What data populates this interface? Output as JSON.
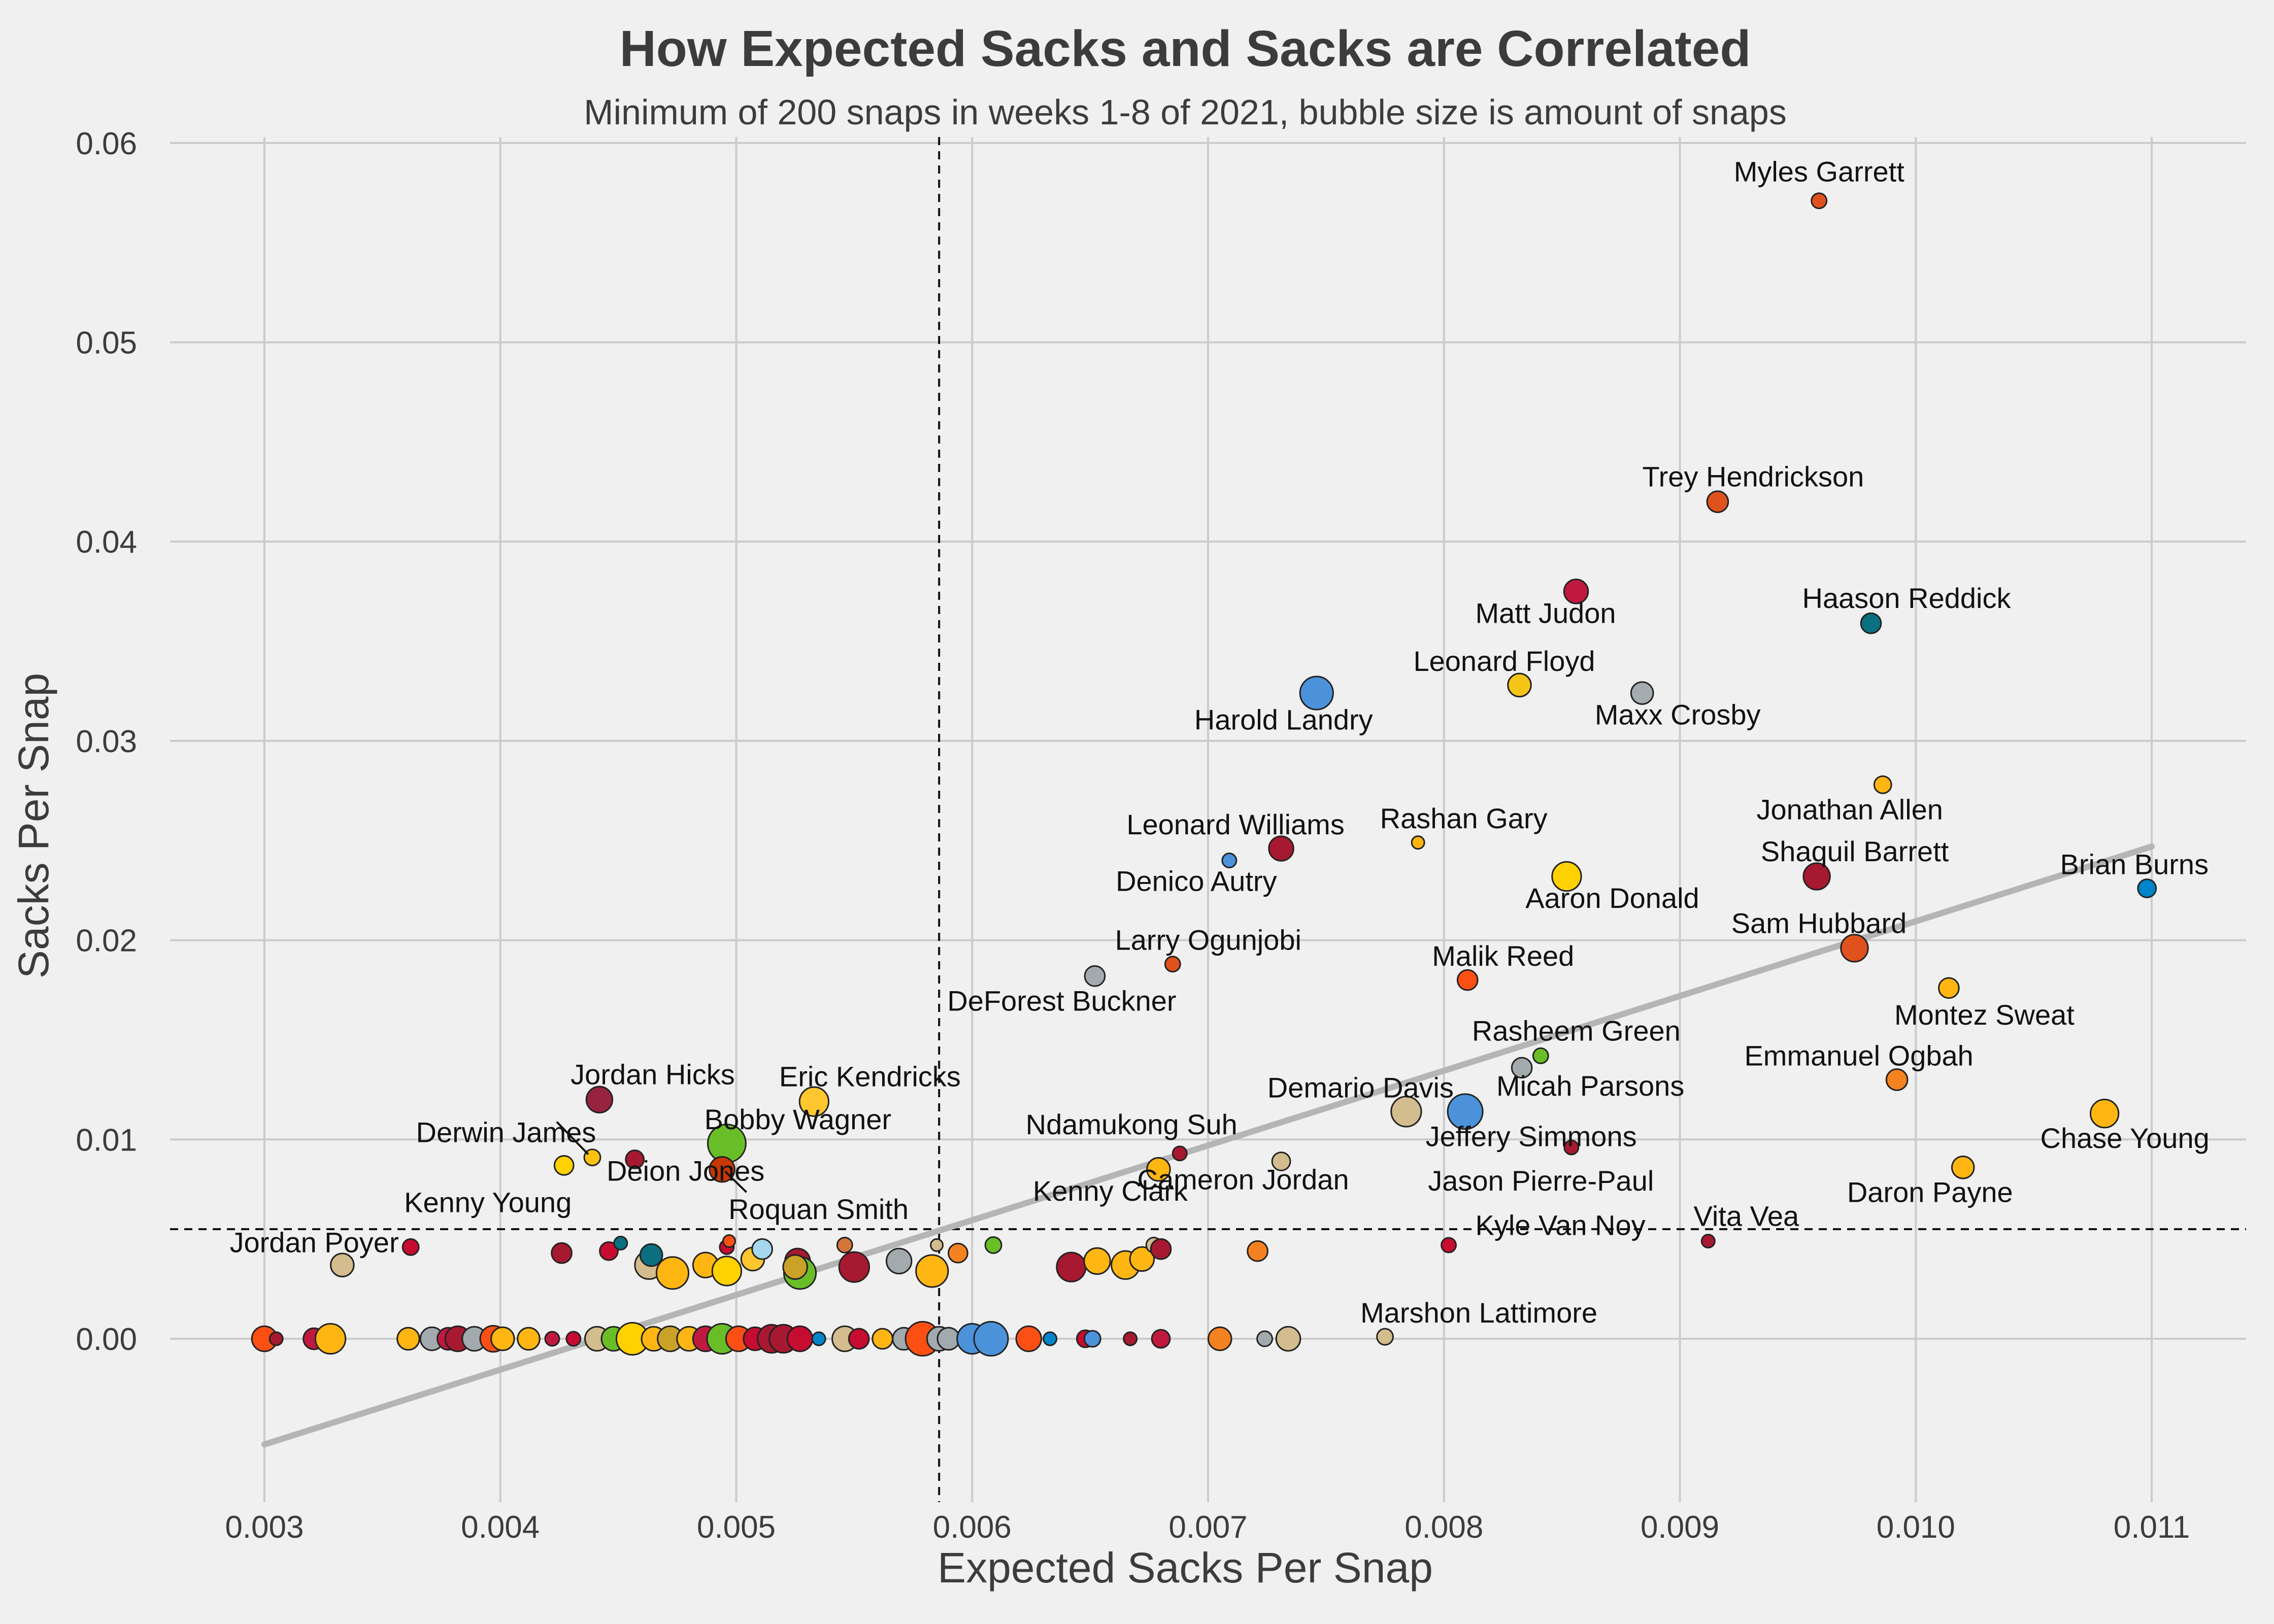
{
  "chart_data": {
    "type": "scatter",
    "title": "How Expected Sacks and Sacks are Correlated",
    "subtitle": "Minimum of 200 snaps in weeks 1-8 of 2021, bubble size is amount of snaps",
    "xlabel": "Expected Sacks Per Snap",
    "ylabel": "Sacks Per Snap",
    "xlim": [
      0.0026,
      0.0114
    ],
    "ylim": [
      -0.0082,
      0.0603
    ],
    "xticks": [
      "0.003",
      "0.004",
      "0.005",
      "0.006",
      "0.007",
      "0.008",
      "0.009",
      "0.010",
      "0.011"
    ],
    "yticks": [
      "0.00",
      "0.01",
      "0.02",
      "0.03",
      "0.04",
      "0.05",
      "0.06"
    ],
    "grid": true,
    "reference_lines": {
      "x_mean": 0.00586,
      "y_mean": 0.0055
    },
    "trend_line": {
      "x": [
        0.003,
        0.011
      ],
      "y": [
        -0.0053,
        0.0247
      ]
    },
    "labeled_points": [
      {
        "name": "Myles Garrett",
        "x": 0.00959,
        "y": 0.0571,
        "snaps": 230,
        "color": "#e0521d"
      },
      {
        "name": "Trey Hendrickson",
        "x": 0.00916,
        "y": 0.042,
        "snaps": 290,
        "color": "#e0521d"
      },
      {
        "name": "Haason Reddick",
        "x": 0.00981,
        "y": 0.0359,
        "snaps": 280,
        "color": "#0a7080"
      },
      {
        "name": "Matt Judon",
        "x": 0.00856,
        "y": 0.0375,
        "snaps": 320,
        "color": "#c0193f"
      },
      {
        "name": "Leonard Floyd",
        "x": 0.00832,
        "y": 0.0328,
        "snaps": 310,
        "color": "#f5c518"
      },
      {
        "name": "Maxx Crosby",
        "x": 0.00884,
        "y": 0.0324,
        "snaps": 300,
        "color": "#a5acaf"
      },
      {
        "name": "Harold Landry",
        "x": 0.00746,
        "y": 0.0324,
        "snaps": 410,
        "color": "#4b92db"
      },
      {
        "name": "Jonathan Allen",
        "x": 0.00986,
        "y": 0.0278,
        "snaps": 250,
        "color": "#ffb612"
      },
      {
        "name": "Shaquil Barrett",
        "x": 0.00958,
        "y": 0.0232,
        "snaps": 345,
        "color": "#a71930"
      },
      {
        "name": "Brian Burns",
        "x": 0.01098,
        "y": 0.0226,
        "snaps": 260,
        "color": "#0085ca"
      },
      {
        "name": "Leonard Williams",
        "x": 0.00731,
        "y": 0.0246,
        "snaps": 325,
        "color": "#a71930"
      },
      {
        "name": "Denico Autry",
        "x": 0.00709,
        "y": 0.024,
        "snaps": 220,
        "color": "#4b92db"
      },
      {
        "name": "Rashan Gary",
        "x": 0.00789,
        "y": 0.0249,
        "snaps": 205,
        "color": "#ffb612"
      },
      {
        "name": "Aaron Donald",
        "x": 0.00852,
        "y": 0.0232,
        "snaps": 370,
        "color": "#ffd100"
      },
      {
        "name": "Sam Hubbard",
        "x": 0.00974,
        "y": 0.0196,
        "snaps": 350,
        "color": "#e0521d"
      },
      {
        "name": "Montez Sweat",
        "x": 0.01014,
        "y": 0.0176,
        "snaps": 280,
        "color": "#ffb612"
      },
      {
        "name": "Larry Ogunjobi",
        "x": 0.00685,
        "y": 0.0188,
        "snaps": 230,
        "color": "#e0521d"
      },
      {
        "name": "DeForest Buckner",
        "x": 0.00652,
        "y": 0.0182,
        "snaps": 280,
        "color": "#a2aaad"
      },
      {
        "name": "Malik Reed",
        "x": 0.0081,
        "y": 0.018,
        "snaps": 280,
        "color": "#fb4f14"
      },
      {
        "name": "Rasheem Green",
        "x": 0.00841,
        "y": 0.0142,
        "snaps": 230,
        "color": "#69be28"
      },
      {
        "name": "Micah Parsons",
        "x": 0.00833,
        "y": 0.0136,
        "snaps": 280,
        "color": "#a2aaad"
      },
      {
        "name": "Emmanuel Ogbah",
        "x": 0.00992,
        "y": 0.013,
        "snaps": 290,
        "color": "#f58220"
      },
      {
        "name": "Demario Davis",
        "x": 0.00784,
        "y": 0.0114,
        "snaps": 380,
        "color": "#d3bc8d"
      },
      {
        "name": "Jeffery Simmons",
        "x": 0.00809,
        "y": 0.0114,
        "snaps": 430,
        "color": "#4b92db"
      },
      {
        "name": "Chase Young",
        "x": 0.0108,
        "y": 0.0113,
        "snaps": 360,
        "color": "#ffb612"
      },
      {
        "name": "Jason Pierre-Paul",
        "x": 0.00854,
        "y": 0.0096,
        "snaps": 220,
        "color": "#a71930"
      },
      {
        "name": "Daron Payne",
        "x": 0.0102,
        "y": 0.0086,
        "snaps": 300,
        "color": "#ffb612"
      },
      {
        "name": "Cameron Jordan",
        "x": 0.00731,
        "y": 0.0089,
        "snaps": 260,
        "color": "#d3bc8d"
      },
      {
        "name": "Kenny Clark",
        "x": 0.00679,
        "y": 0.0085,
        "snaps": 310,
        "color": "#ffb612"
      },
      {
        "name": "Ndamukong Suh",
        "x": 0.00688,
        "y": 0.0093,
        "snaps": 220,
        "color": "#a71930"
      },
      {
        "name": "Jordan Hicks",
        "x": 0.00442,
        "y": 0.012,
        "snaps": 340,
        "color": "#97233f"
      },
      {
        "name": "Eric Kendricks",
        "x": 0.00533,
        "y": 0.0119,
        "snaps": 370,
        "color": "#ffc62f"
      },
      {
        "name": "Bobby Wagner",
        "x": 0.00496,
        "y": 0.0098,
        "snaps": 460,
        "color": "#69be28"
      },
      {
        "name": "Derwin James",
        "x": 0.00439,
        "y": 0.0091,
        "snaps": 240,
        "color": "#ffc20e"
      },
      {
        "name": "Deion Jones",
        "x": 0.00457,
        "y": 0.009,
        "snaps": 260,
        "color": "#a71930"
      },
      {
        "name": "Roquan Smith",
        "x": 0.00494,
        "y": 0.0085,
        "snaps": 330,
        "color": "#c83803"
      },
      {
        "name": "Kenny Young",
        "x": 0.00427,
        "y": 0.0087,
        "snaps": 270,
        "color": "#ffd100"
      },
      {
        "name": "Jordan Poyer",
        "x": 0.00362,
        "y": 0.0046,
        "snaps": 240,
        "color": "#c60c30"
      },
      {
        "name": "Kyle Van Noy",
        "x": 0.00802,
        "y": 0.0047,
        "snaps": 225,
        "color": "#c60c30"
      },
      {
        "name": "Vita Vea",
        "x": 0.00912,
        "y": 0.0049,
        "snaps": 210,
        "color": "#a71930"
      },
      {
        "name": "Marshon Lattimore",
        "x": 0.00775,
        "y": 0.0001,
        "snaps": 240,
        "color": "#d3bc8d"
      }
    ],
    "other_points": [
      {
        "x": 0.003,
        "y": 0,
        "snaps": 330,
        "color": "#fb4f14"
      },
      {
        "x": 0.00305,
        "y": 0,
        "snaps": 210,
        "color": "#a71930"
      },
      {
        "x": 0.00321,
        "y": 0,
        "snaps": 290,
        "color": "#c0193f"
      },
      {
        "x": 0.00328,
        "y": 0,
        "snaps": 380,
        "color": "#ffb612"
      },
      {
        "x": 0.00361,
        "y": 0,
        "snaps": 300,
        "color": "#ffb612"
      },
      {
        "x": 0.00371,
        "y": 0,
        "snaps": 310,
        "color": "#a2aaad"
      },
      {
        "x": 0.00378,
        "y": 0,
        "snaps": 300,
        "color": "#c0193f"
      },
      {
        "x": 0.00382,
        "y": 0,
        "snaps": 330,
        "color": "#a71930"
      },
      {
        "x": 0.00389,
        "y": 0,
        "snaps": 320,
        "color": "#a2aaad"
      },
      {
        "x": 0.00397,
        "y": 0,
        "snaps": 340,
        "color": "#fb4f14"
      },
      {
        "x": 0.00401,
        "y": 0,
        "snaps": 310,
        "color": "#ffb612"
      },
      {
        "x": 0.00412,
        "y": 0,
        "snaps": 300,
        "color": "#ffb612"
      },
      {
        "x": 0.00422,
        "y": 0,
        "snaps": 220,
        "color": "#c0193f"
      },
      {
        "x": 0.00431,
        "y": 0,
        "snaps": 220,
        "color": "#c60c30"
      },
      {
        "x": 0.00441,
        "y": 0,
        "snaps": 320,
        "color": "#d3bc8d"
      },
      {
        "x": 0.00448,
        "y": 0,
        "snaps": 320,
        "color": "#69be28"
      },
      {
        "x": 0.00456,
        "y": 0,
        "snaps": 400,
        "color": "#ffd100"
      },
      {
        "x": 0.00465,
        "y": 0,
        "snaps": 320,
        "color": "#ffb612"
      },
      {
        "x": 0.00472,
        "y": 0,
        "snaps": 330,
        "color": "#c9a227"
      },
      {
        "x": 0.0048,
        "y": 0,
        "snaps": 320,
        "color": "#ffb612"
      },
      {
        "x": 0.00487,
        "y": 0,
        "snaps": 330,
        "color": "#c0193f"
      },
      {
        "x": 0.00494,
        "y": 0,
        "snaps": 380,
        "color": "#69be28"
      },
      {
        "x": 0.00501,
        "y": 0,
        "snaps": 330,
        "color": "#fb4f14"
      },
      {
        "x": 0.00508,
        "y": 0,
        "snaps": 310,
        "color": "#c60c30"
      },
      {
        "x": 0.00515,
        "y": 0,
        "snaps": 360,
        "color": "#a71930"
      },
      {
        "x": 0.0052,
        "y": 0,
        "snaps": 360,
        "color": "#a71930"
      },
      {
        "x": 0.00527,
        "y": 0,
        "snaps": 330,
        "color": "#c60c30"
      },
      {
        "x": 0.00535,
        "y": 0,
        "snaps": 210,
        "color": "#0085ca"
      },
      {
        "x": 0.00546,
        "y": 0,
        "snaps": 330,
        "color": "#d3bc8d"
      },
      {
        "x": 0.00552,
        "y": 0,
        "snaps": 280,
        "color": "#c60c30"
      },
      {
        "x": 0.00562,
        "y": 0,
        "snaps": 280,
        "color": "#ffb612"
      },
      {
        "x": 0.00571,
        "y": 0,
        "snaps": 300,
        "color": "#a2aaad"
      },
      {
        "x": 0.00579,
        "y": 0,
        "snaps": 420,
        "color": "#fb4f14"
      },
      {
        "x": 0.00586,
        "y": 0,
        "snaps": 320,
        "color": "#a2aaad"
      },
      {
        "x": 0.0059,
        "y": 0,
        "snaps": 300,
        "color": "#a2aaad"
      },
      {
        "x": 0.006,
        "y": 0,
        "snaps": 380,
        "color": "#4b92db"
      },
      {
        "x": 0.00608,
        "y": 0,
        "snaps": 420,
        "color": "#4b92db"
      },
      {
        "x": 0.00624,
        "y": 0,
        "snaps": 330,
        "color": "#fb4f14"
      },
      {
        "x": 0.00633,
        "y": 0,
        "snaps": 210,
        "color": "#0085ca"
      },
      {
        "x": 0.00648,
        "y": 0,
        "snaps": 250,
        "color": "#c60c30"
      },
      {
        "x": 0.00651,
        "y": 0,
        "snaps": 240,
        "color": "#4b92db"
      },
      {
        "x": 0.00667,
        "y": 0,
        "snaps": 210,
        "color": "#a71930"
      },
      {
        "x": 0.0068,
        "y": 0,
        "snaps": 260,
        "color": "#c0193f"
      },
      {
        "x": 0.00705,
        "y": 0,
        "snaps": 310,
        "color": "#f58220"
      },
      {
        "x": 0.00724,
        "y": 0,
        "snaps": 230,
        "color": "#a2aaad"
      },
      {
        "x": 0.00734,
        "y": 0,
        "snaps": 320,
        "color": "#d3bc8d"
      },
      {
        "x": 0.00333,
        "y": 0.0037,
        "snaps": 310,
        "color": "#d3bc8d"
      },
      {
        "x": 0.00426,
        "y": 0.0043,
        "snaps": 280,
        "color": "#a71930"
      },
      {
        "x": 0.00446,
        "y": 0.0044,
        "snaps": 260,
        "color": "#c60c30"
      },
      {
        "x": 0.00451,
        "y": 0.0048,
        "snaps": 210,
        "color": "#0a7080"
      },
      {
        "x": 0.00463,
        "y": 0.0037,
        "snaps": 360,
        "color": "#d3bc8d"
      },
      {
        "x": 0.00464,
        "y": 0.0042,
        "snaps": 300,
        "color": "#0a7080"
      },
      {
        "x": 0.00473,
        "y": 0.0033,
        "snaps": 400,
        "color": "#ffb612"
      },
      {
        "x": 0.00487,
        "y": 0.0037,
        "snaps": 330,
        "color": "#ffb612"
      },
      {
        "x": 0.00496,
        "y": 0.0034,
        "snaps": 370,
        "color": "#ffd100"
      },
      {
        "x": 0.00496,
        "y": 0.0046,
        "snaps": 220,
        "color": "#c60c30"
      },
      {
        "x": 0.00497,
        "y": 0.0049,
        "snaps": 200,
        "color": "#fb4f14"
      },
      {
        "x": 0.00507,
        "y": 0.004,
        "snaps": 310,
        "color": "#ffc62f"
      },
      {
        "x": 0.00511,
        "y": 0.0045,
        "snaps": 280,
        "color": "#a5d7ee"
      },
      {
        "x": 0.00526,
        "y": 0.0039,
        "snaps": 330,
        "color": "#a71930"
      },
      {
        "x": 0.00527,
        "y": 0.0033,
        "snaps": 400,
        "color": "#69be28"
      },
      {
        "x": 0.00525,
        "y": 0.0036,
        "snaps": 320,
        "color": "#c9a227"
      },
      {
        "x": 0.00546,
        "y": 0.0047,
        "snaps": 230,
        "color": "#d5773b"
      },
      {
        "x": 0.0055,
        "y": 0.0036,
        "snaps": 380,
        "color": "#a71930"
      },
      {
        "x": 0.00569,
        "y": 0.0039,
        "snaps": 330,
        "color": "#a2aaad"
      },
      {
        "x": 0.00583,
        "y": 0.0034,
        "snaps": 400,
        "color": "#ffb612"
      },
      {
        "x": 0.00585,
        "y": 0.0047,
        "snaps": 200,
        "color": "#d3bc8d"
      },
      {
        "x": 0.00594,
        "y": 0.0043,
        "snaps": 270,
        "color": "#f58220"
      },
      {
        "x": 0.00609,
        "y": 0.0047,
        "snaps": 240,
        "color": "#69be28"
      },
      {
        "x": 0.00642,
        "y": 0.0036,
        "snaps": 370,
        "color": "#a71930"
      },
      {
        "x": 0.00653,
        "y": 0.0039,
        "snaps": 340,
        "color": "#ffb612"
      },
      {
        "x": 0.00665,
        "y": 0.0037,
        "snaps": 360,
        "color": "#ffb612"
      },
      {
        "x": 0.00672,
        "y": 0.004,
        "snaps": 320,
        "color": "#ffb612"
      },
      {
        "x": 0.00677,
        "y": 0.0047,
        "snaps": 230,
        "color": "#d3bc8d"
      },
      {
        "x": 0.0068,
        "y": 0.0045,
        "snaps": 280,
        "color": "#a71930"
      },
      {
        "x": 0.00721,
        "y": 0.0044,
        "snaps": 280,
        "color": "#f58220"
      }
    ]
  }
}
